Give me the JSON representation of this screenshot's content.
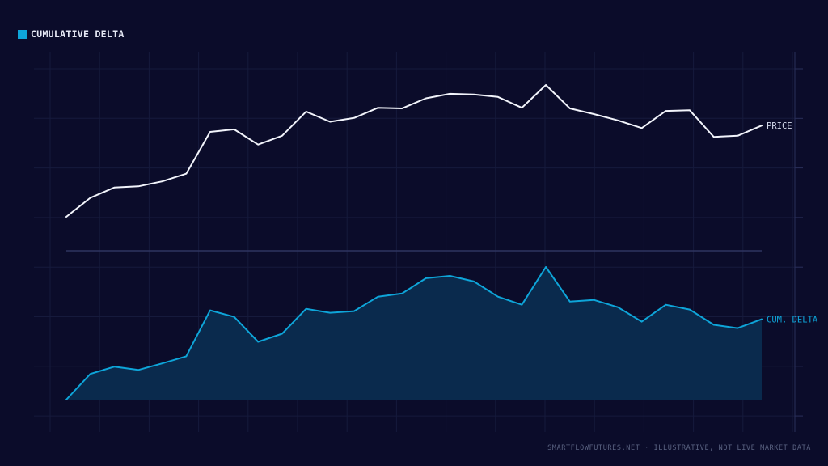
{
  "legend": {
    "label": "CUMULATIVE DELTA",
    "swatch_color": "#0ea5d9"
  },
  "footer": {
    "text": "SMARTFLOWFUTURES.NET · ILLUSTRATIVE, NOT LIVE MARKET DATA"
  },
  "colors": {
    "background": "#0b0c2a",
    "grid": "#161a3c",
    "axis": "#2a2f5a",
    "price_line": "#f2f4fb",
    "delta_line": "#0ea5d9",
    "delta_fill": "#0a2a4d",
    "divider": "#2e3460"
  },
  "chart_data": {
    "type": "line",
    "x": [
      1,
      2,
      3,
      4,
      5,
      6,
      7,
      8,
      9,
      10,
      11,
      12,
      13,
      14,
      15,
      16,
      17,
      18,
      19,
      20,
      21,
      22,
      23,
      24,
      25,
      26,
      27,
      28,
      29,
      30
    ],
    "series": [
      {
        "name": "PRICE",
        "color": "#f2f4fb",
        "values": [
          0.0,
          0.144,
          0.222,
          0.231,
          0.269,
          0.327,
          0.644,
          0.663,
          0.548,
          0.615,
          0.798,
          0.721,
          0.75,
          0.827,
          0.822,
          0.899,
          0.933,
          0.928,
          0.909,
          0.827,
          1.0,
          0.822,
          0.779,
          0.731,
          0.673,
          0.803,
          0.808,
          0.606,
          0.615,
          0.692
        ]
      },
      {
        "name": "CUM. DELTA",
        "color": "#0ea5d9",
        "area": true,
        "values": [
          0.0,
          0.194,
          0.248,
          0.224,
          0.273,
          0.327,
          0.673,
          0.624,
          0.436,
          0.497,
          0.685,
          0.655,
          0.667,
          0.776,
          0.8,
          0.915,
          0.933,
          0.891,
          0.776,
          0.715,
          1.0,
          0.739,
          0.752,
          0.697,
          0.588,
          0.715,
          0.679,
          0.564,
          0.539,
          0.606
        ]
      }
    ],
    "grid": true,
    "legend_position": "top-left"
  }
}
